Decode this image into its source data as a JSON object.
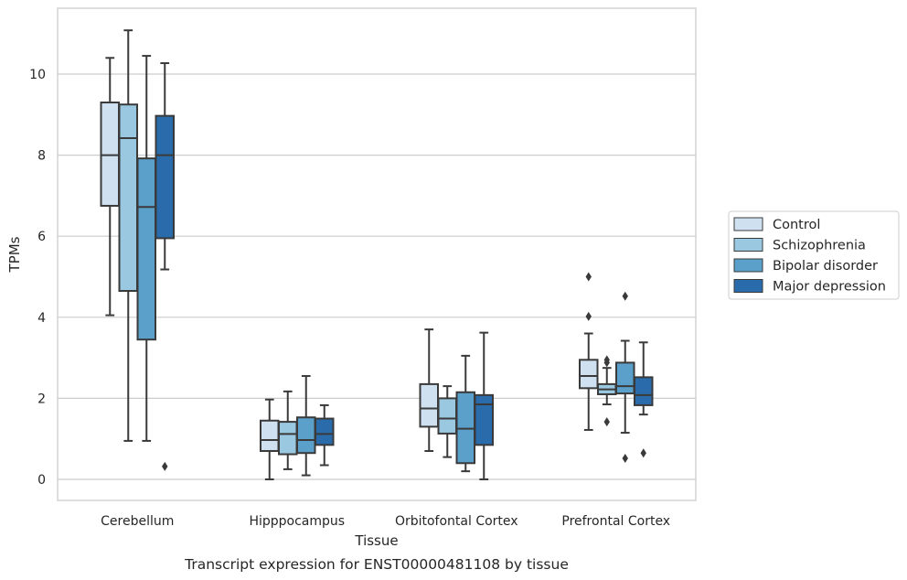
{
  "chart_data": {
    "type": "box",
    "title": "Transcript expression for ENST00000481108 by tissue",
    "xlabel": "Tissue",
    "ylabel": "TPMs",
    "ylim": [
      -0.5,
      11.6
    ],
    "yticks": [
      0,
      2,
      4,
      6,
      8,
      10
    ],
    "grid": "horizontal",
    "legend_position": "right",
    "categories": [
      "Cerebellum",
      "Hipppocampus",
      "Orbitofontal Cortex",
      "Prefrontal Cortex"
    ],
    "series": [
      {
        "name": "Control",
        "color": "#cfe0f0",
        "boxes": [
          {
            "whislo": 4.05,
            "q1": 6.75,
            "med": 8.0,
            "q3": 9.3,
            "whishi": 10.4,
            "fliers": []
          },
          {
            "whislo": 0.0,
            "q1": 0.7,
            "med": 0.97,
            "q3": 1.45,
            "whishi": 1.97,
            "fliers": []
          },
          {
            "whislo": 0.7,
            "q1": 1.3,
            "med": 1.75,
            "q3": 2.35,
            "whishi": 3.7,
            "fliers": []
          },
          {
            "whislo": 1.22,
            "q1": 2.25,
            "med": 2.55,
            "q3": 2.95,
            "whishi": 3.6,
            "fliers": [
              4.02,
              5.0
            ]
          }
        ]
      },
      {
        "name": "Schizophrenia",
        "color": "#9ac8e0",
        "boxes": [
          {
            "whislo": 0.95,
            "q1": 4.65,
            "med": 8.42,
            "q3": 9.25,
            "whishi": 11.08,
            "fliers": []
          },
          {
            "whislo": 0.25,
            "q1": 0.62,
            "med": 1.12,
            "q3": 1.42,
            "whishi": 2.17,
            "fliers": []
          },
          {
            "whislo": 0.55,
            "q1": 1.13,
            "med": 1.5,
            "q3": 2.0,
            "whishi": 2.3,
            "fliers": []
          },
          {
            "whislo": 1.85,
            "q1": 2.1,
            "med": 2.22,
            "q3": 2.35,
            "whishi": 2.75,
            "fliers": [
              1.42,
              2.88,
              2.95
            ]
          }
        ]
      },
      {
        "name": "Bipolar disorder",
        "color": "#5b9fcb",
        "boxes": [
          {
            "whislo": 0.95,
            "q1": 3.45,
            "med": 6.72,
            "q3": 7.92,
            "whishi": 10.45,
            "fliers": []
          },
          {
            "whislo": 0.1,
            "q1": 0.65,
            "med": 0.97,
            "q3": 1.53,
            "whishi": 2.55,
            "fliers": []
          },
          {
            "whislo": 0.2,
            "q1": 0.4,
            "med": 1.25,
            "q3": 2.15,
            "whishi": 3.05,
            "fliers": []
          },
          {
            "whislo": 1.15,
            "q1": 2.12,
            "med": 2.3,
            "q3": 2.88,
            "whishi": 3.42,
            "fliers": [
              0.52,
              4.52
            ]
          }
        ]
      },
      {
        "name": "Major depression",
        "color": "#2a6cab",
        "boxes": [
          {
            "whislo": 5.18,
            "q1": 5.95,
            "med": 8.0,
            "q3": 8.97,
            "whishi": 10.27,
            "fliers": [
              0.32
            ]
          },
          {
            "whislo": 0.35,
            "q1": 0.85,
            "med": 1.12,
            "q3": 1.5,
            "whishi": 1.83,
            "fliers": []
          },
          {
            "whislo": 0.0,
            "q1": 0.85,
            "med": 1.85,
            "q3": 2.08,
            "whishi": 3.62,
            "fliers": []
          },
          {
            "whislo": 1.6,
            "q1": 1.83,
            "med": 2.08,
            "q3": 2.52,
            "whishi": 3.38,
            "fliers": [
              0.65
            ]
          }
        ]
      }
    ]
  }
}
